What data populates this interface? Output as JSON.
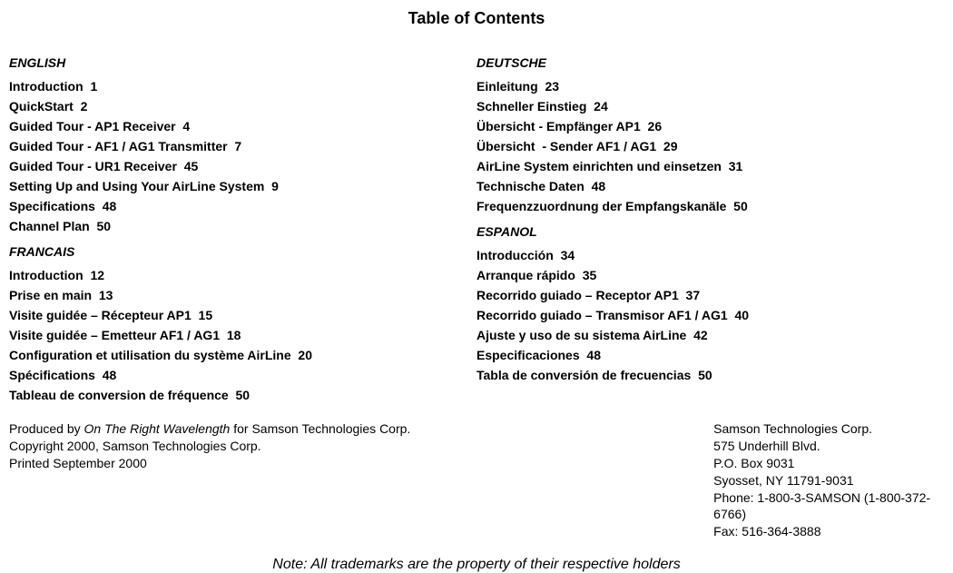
{
  "title": "Table of Contents",
  "sections": {
    "english": {
      "heading": "ENGLISH",
      "items": [
        {
          "label": "Introduction",
          "page": "1"
        },
        {
          "label": "QuickStart",
          "page": "2"
        },
        {
          "label": "Guided Tour - AP1 Receiver",
          "page": "4"
        },
        {
          "label": "Guided Tour - AF1 / AG1 Transmitter",
          "page": "7"
        },
        {
          "label": "Guided Tour - UR1 Receiver",
          "page": "45"
        },
        {
          "label": "Setting Up and Using Your AirLine System",
          "page": "9"
        },
        {
          "label": "Specifications",
          "page": "48"
        },
        {
          "label": "Channel Plan",
          "page": "50"
        }
      ]
    },
    "francais": {
      "heading": "FRANCAIS",
      "items": [
        {
          "label": "Introduction",
          "page": "12"
        },
        {
          "label": "Prise en main",
          "page": "13"
        },
        {
          "label": "Visite guidée – Récepteur AP1",
          "page": "15"
        },
        {
          "label": "Visite guidée – Emetteur AF1 / AG1",
          "page": "18"
        },
        {
          "label": "Configuration et utilisation du système AirLine",
          "page": "20"
        },
        {
          "label": "Spécifications",
          "page": "48"
        },
        {
          "label": "Tableau de conversion de fréquence",
          "page": "50"
        }
      ]
    },
    "deutsche": {
      "heading": "DEUTSCHE",
      "items": [
        {
          "label": "Einleitung",
          "page": "23"
        },
        {
          "label": "Schneller Einstieg",
          "page": "24"
        },
        {
          "label": "Übersicht - Empfänger AP1",
          "page": "26"
        },
        {
          "label": "Übersicht  - Sender AF1 / AG1",
          "page": "29"
        },
        {
          "label": "AirLine System einrichten und einsetzen",
          "page": "31"
        },
        {
          "label": "Technische Daten",
          "page": "48"
        },
        {
          "label": "Frequenzzuordnung der Empfangskanäle",
          "page": "50"
        }
      ]
    },
    "espanol": {
      "heading": "ESPANOL",
      "items": [
        {
          "label": "Introducción",
          "page": "34"
        },
        {
          "label": "Arranque rápido",
          "page": "35"
        },
        {
          "label": "Recorrido guiado – Receptor AP1",
          "page": "37"
        },
        {
          "label": "Recorrido guiado – Transmisor AF1 / AG1",
          "page": "40"
        },
        {
          "label": "Ajuste y uso de su sistema AirLine",
          "page": "42"
        },
        {
          "label": "Especificaciones",
          "page": "48"
        },
        {
          "label": "Tabla de conversión de frecuencias",
          "page": "50"
        }
      ]
    }
  },
  "footer_left": {
    "produced_prefix": "Produced by ",
    "producer": "On The Right Wavelength",
    "produced_suffix": " for Samson Technologies Corp.",
    "copyright": "Copyright 2000, Samson Technologies Corp.",
    "printed": "Printed September 2000"
  },
  "footer_right": {
    "company": "Samson Technologies Corp.",
    "addr1": "575 Underhill Blvd.",
    "addr2": "P.O. Box 9031",
    "addr3": "Syosset, NY 11791-9031",
    "phone": "Phone: 1-800-3-SAMSON (1-800-372-6766)",
    "fax": "Fax: 516-364-3888"
  },
  "note": "Note: All trademarks are the property of their respective holders",
  "style": {
    "background_color": "#ffffff",
    "text_color": "#000000",
    "title_fontsize": 18,
    "heading_fontsize": 14,
    "entry_fontsize": 14,
    "footer_fontsize": 14,
    "note_fontsize": 16,
    "font_family": "Arial, Helvetica, sans-serif"
  }
}
